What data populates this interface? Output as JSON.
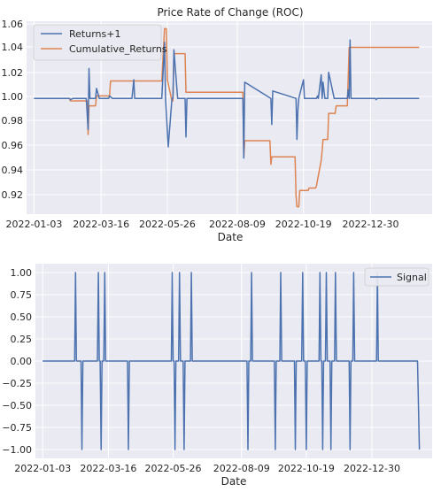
{
  "chart_data": [
    {
      "type": "line",
      "title": "Price Rate of Change (ROC)",
      "xlabel": "Date",
      "ylabel": "",
      "xticks": [
        "2022-01-03",
        "2022-03-16",
        "2022-05-26",
        "2022-08-09",
        "2022-10-19",
        "2022-12-30"
      ],
      "yticks": [
        "1.06",
        "1.04",
        "1.02",
        "1.00",
        "0.98",
        "0.96",
        "0.94",
        "0.92"
      ],
      "ylim": [
        0.907,
        1.062
      ],
      "grid": true,
      "legend": "top-left",
      "colors": {
        "Returns+1": "#4c72b0",
        "Cumulative_Returns": "#dd8452"
      },
      "series": [
        {
          "name": "Returns+1",
          "x": [
            "2022-01-03",
            "2022-01-20",
            "2022-02-10",
            "2022-02-11",
            "2022-02-14",
            "2022-02-28",
            "2022-03-02",
            "2022-03-03",
            "2022-03-04",
            "2022-03-07",
            "2022-03-10",
            "2022-03-11",
            "2022-03-14",
            "2022-03-21",
            "2022-03-23",
            "2022-03-24",
            "2022-03-25",
            "2022-03-28",
            "2022-04-18",
            "2022-04-20",
            "2022-04-21",
            "2022-05-20",
            "2022-05-23",
            "2022-05-24",
            "2022-05-27",
            "2022-05-31",
            "2022-06-01",
            "2022-06-02",
            "2022-06-06",
            "2022-06-07",
            "2022-06-14",
            "2022-06-15",
            "2022-06-16",
            "2022-08-15",
            "2022-08-16",
            "2022-08-17",
            "2022-09-14",
            "2022-09-15",
            "2022-09-16",
            "2022-10-11",
            "2022-10-12",
            "2022-10-13",
            "2022-10-14",
            "2022-10-19",
            "2022-10-20",
            "2022-10-21",
            "2022-11-02",
            "2022-11-03",
            "2022-11-04",
            "2022-11-07",
            "2022-11-08",
            "2022-11-09",
            "2022-11-11",
            "2022-11-14",
            "2022-11-15",
            "2022-11-21",
            "2022-11-22",
            "2022-11-23",
            "2022-12-05",
            "2022-12-06",
            "2022-12-07",
            "2022-12-08",
            "2022-12-09",
            "2023-01-04",
            "2023-01-05",
            "2023-01-06",
            "2023-02-20"
          ],
          "values": [
            1.0,
            1.0,
            1.0,
            0.999,
            1.0,
            1.0,
            0.975,
            1.024,
            1.0,
            1.0,
            1.0,
            1.008,
            1.0,
            1.0,
            1.0,
            1.0,
            1.002,
            1.0,
            1.0,
            1.015,
            1.0,
            1.0,
            1.045,
            1.0,
            0.961,
            1.0,
            1.0,
            1.039,
            1.0,
            1.0,
            1.0,
            0.969,
            1.0,
            1.0,
            0.952,
            1.013,
            1.0,
            0.979,
            1.006,
            1.0,
            0.967,
            0.991,
            1.0,
            1.015,
            1.0,
            1.0,
            1.0,
            1.002,
            1.0,
            1.019,
            1.0,
            1.013,
            1.0,
            1.0,
            1.021,
            1.0,
            1.0,
            1.0,
            1.0,
            1.007,
            1.0,
            1.047,
            1.0,
            1.0,
            0.999,
            1.0,
            1.0
          ]
        },
        {
          "name": "Cumulative_Returns",
          "x": [
            "2022-01-03",
            "2022-01-20",
            "2022-01-21",
            "2022-02-10",
            "2022-02-11",
            "2022-03-01",
            "2022-03-02",
            "2022-03-03",
            "2022-03-04",
            "2022-03-10",
            "2022-03-11",
            "2022-03-25",
            "2022-03-26",
            "2022-05-20",
            "2022-05-23",
            "2022-05-25",
            "2022-05-26",
            "2022-05-31",
            "2022-06-01",
            "2022-06-02",
            "2022-06-14",
            "2022-06-15",
            "2022-08-15",
            "2022-08-16",
            "2022-08-17",
            "2022-09-13",
            "2022-09-14",
            "2022-09-15",
            "2022-10-10",
            "2022-10-11",
            "2022-10-12",
            "2022-10-14",
            "2022-10-15",
            "2022-10-24",
            "2022-10-25",
            "2022-11-01",
            "2022-11-02",
            "2022-11-07",
            "2022-11-08",
            "2022-11-09",
            "2022-11-10",
            "2022-11-14",
            "2022-11-15",
            "2022-11-21",
            "2022-11-22",
            "2022-11-23",
            "2022-12-05",
            "2022-12-07",
            "2022-12-08",
            "2023-01-04",
            "2023-01-05",
            "2023-02-20"
          ],
          "values": [
            1.0,
            1.0,
            1.0,
            1.0,
            0.998,
            0.998,
            0.971,
            0.994,
            0.994,
            0.994,
            1.002,
            1.002,
            1.014,
            1.014,
            1.056,
            1.056,
            1.015,
            0.998,
            0.998,
            1.036,
            1.036,
            1.005,
            1.005,
            0.953,
            0.966,
            0.966,
            0.947,
            0.953,
            0.953,
            0.922,
            0.913,
            0.913,
            0.926,
            0.926,
            0.928,
            0.928,
            0.93,
            0.95,
            0.958,
            0.967,
            0.967,
            0.967,
            0.988,
            0.988,
            0.988,
            0.994,
            0.994,
            1.041,
            1.041,
            1.041,
            1.041,
            1.041
          ]
        }
      ]
    },
    {
      "type": "line",
      "title": "",
      "xlabel": "Date",
      "ylabel": "",
      "xticks": [
        "2022-01-03",
        "2022-03-16",
        "2022-05-26",
        "2022-08-09",
        "2022-10-19",
        "2022-12-30"
      ],
      "yticks": [
        "1.00",
        "0.75",
        "0.50",
        "0.25",
        "0.00",
        "−0.25",
        "−0.50",
        "−0.75",
        "−1.00"
      ],
      "ylim": [
        -1.1,
        1.1
      ],
      "grid": true,
      "legend": "top-right",
      "colors": {
        "Signal": "#4c72b0"
      },
      "series": [
        {
          "name": "Signal",
          "x": [
            "2022-01-03",
            "2022-02-07",
            "2022-02-08",
            "2022-02-09",
            "2022-02-14",
            "2022-02-15",
            "2022-02-16",
            "2022-03-04",
            "2022-03-05",
            "2022-03-06",
            "2022-03-07",
            "2022-03-08",
            "2022-03-09",
            "2022-03-11",
            "2022-03-12",
            "2022-03-13",
            "2022-04-06",
            "2022-04-07",
            "2022-04-08",
            "2022-05-24",
            "2022-05-25",
            "2022-05-26",
            "2022-05-27",
            "2022-05-28",
            "2022-05-29",
            "2022-06-01",
            "2022-06-02",
            "2022-06-03",
            "2022-06-06",
            "2022-06-07",
            "2022-06-08",
            "2022-06-14",
            "2022-06-15",
            "2022-06-16",
            "2022-08-15",
            "2022-08-16",
            "2022-08-17",
            "2022-08-19",
            "2022-08-20",
            "2022-08-21",
            "2022-09-14",
            "2022-09-15",
            "2022-09-16",
            "2022-09-20",
            "2022-09-21",
            "2022-09-22",
            "2022-10-06",
            "2022-10-07",
            "2022-10-08",
            "2022-10-14",
            "2022-10-15",
            "2022-10-16",
            "2022-10-18",
            "2022-10-19",
            "2022-10-20",
            "2022-11-02",
            "2022-11-03",
            "2022-11-04",
            "2022-11-05",
            "2022-11-06",
            "2022-11-07",
            "2022-11-09",
            "2022-11-10",
            "2022-11-11",
            "2022-11-14",
            "2022-11-15",
            "2022-11-16",
            "2022-11-19",
            "2022-11-20",
            "2022-11-21",
            "2022-12-05",
            "2022-12-06",
            "2022-12-07",
            "2022-12-09",
            "2022-12-10",
            "2022-12-11",
            "2023-01-04",
            "2023-01-05",
            "2023-01-06",
            "2023-02-18",
            "2023-02-20"
          ],
          "values": [
            0,
            0,
            1,
            0,
            0,
            -1,
            0,
            0,
            1,
            0,
            0,
            -1,
            0,
            0,
            1,
            0,
            0,
            -1,
            0,
            0,
            1,
            0,
            0,
            -1,
            0,
            0,
            1,
            0,
            0,
            -1,
            0,
            0,
            1,
            0,
            0,
            -1,
            0,
            0,
            1,
            0,
            0,
            -1,
            0,
            0,
            1,
            0,
            0,
            -1,
            0,
            0,
            1,
            0,
            0,
            -1,
            0,
            0,
            1,
            0,
            0,
            -1,
            0,
            0,
            1,
            0,
            0,
            -1,
            0,
            0,
            1,
            0,
            0,
            -1,
            0,
            0,
            1,
            0,
            0,
            1,
            0,
            0,
            -1
          ]
        }
      ]
    }
  ]
}
